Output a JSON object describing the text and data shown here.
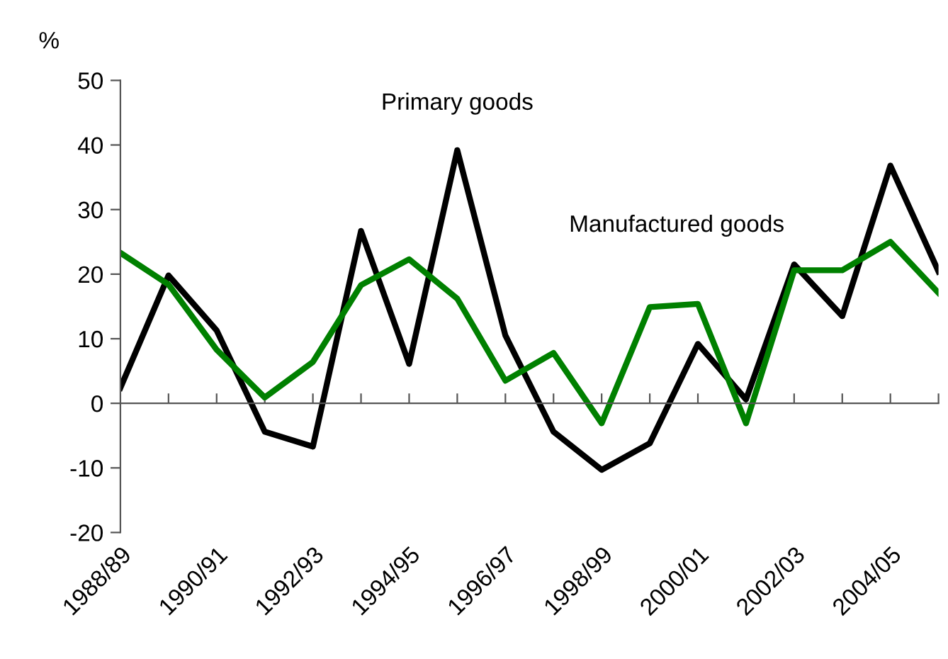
{
  "chart_data": {
    "type": "line",
    "ylabel": "%",
    "categories": [
      "1988/89",
      null,
      "1990/91",
      null,
      "1992/93",
      null,
      "1994/95",
      null,
      "1996/97",
      null,
      "1998/99",
      null,
      "2000/01",
      null,
      "2002/03",
      null,
      "2004/05",
      null
    ],
    "series": [
      {
        "name": "Primary goods",
        "color": "#000000",
        "values": [
          2.4,
          19.8,
          11.3,
          -4.4,
          -6.7,
          26.7,
          6.1,
          39.2,
          10.5,
          -4.4,
          -10.3,
          -6.2,
          9.2,
          0.6,
          21.5,
          13.5,
          36.8,
          20.4
        ]
      },
      {
        "name": "Manufactured goods",
        "color": "#008000",
        "values": [
          23.3,
          18.4,
          8.3,
          0.9,
          6.4,
          18.3,
          22.3,
          16.2,
          3.5,
          7.8,
          -3.1,
          14.9,
          15.4,
          -3.1,
          20.6,
          20.6,
          25.0,
          17.1
        ]
      }
    ],
    "ylim": [
      -20,
      50
    ],
    "yticks": [
      -20,
      -10,
      0,
      10,
      20,
      30,
      40,
      50
    ],
    "legend": false,
    "marker": "none",
    "line_style": "solid"
  }
}
